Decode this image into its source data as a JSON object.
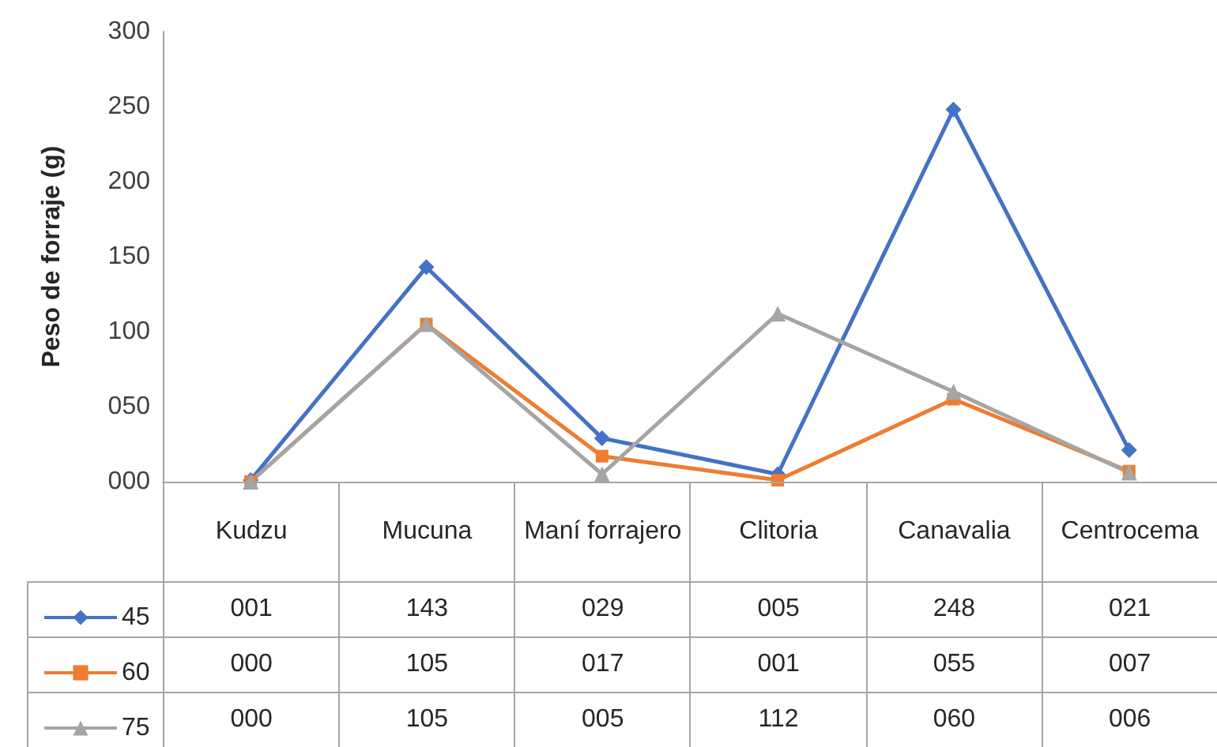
{
  "chart_data": {
    "type": "line",
    "ylabel": "Peso de forraje (g)",
    "categories": [
      "Kudzu",
      "Mucuna",
      "Maní forrajero",
      "Clitoria",
      "Canavalia",
      "Centrocema"
    ],
    "series": [
      {
        "name": "45",
        "color": "#4472c4",
        "marker": "diamond",
        "values": [
          1,
          143,
          29,
          5,
          248,
          21
        ],
        "value_labels": [
          "001",
          "143",
          "029",
          "005",
          "248",
          "021"
        ]
      },
      {
        "name": "60",
        "color": "#ed7d31",
        "marker": "square",
        "values": [
          0,
          105,
          17,
          1,
          55,
          7
        ],
        "value_labels": [
          "000",
          "105",
          "017",
          "001",
          "055",
          "007"
        ]
      },
      {
        "name": "75",
        "color": "#a5a5a5",
        "marker": "triangle",
        "values": [
          0,
          105,
          5,
          112,
          60,
          6
        ],
        "value_labels": [
          "000",
          "105",
          "005",
          "112",
          "060",
          "006"
        ]
      }
    ],
    "ylim": [
      0,
      300
    ],
    "yticks": [
      {
        "value": 0,
        "label": "000"
      },
      {
        "value": 50,
        "label": "050"
      },
      {
        "value": 100,
        "label": "100"
      },
      {
        "value": 150,
        "label": "150"
      },
      {
        "value": 200,
        "label": "200"
      },
      {
        "value": 250,
        "label": "250"
      },
      {
        "value": 300,
        "label": "300"
      }
    ],
    "grid": false,
    "legend": "bottom left",
    "tick_labels": "y",
    "line_style": "solid"
  }
}
